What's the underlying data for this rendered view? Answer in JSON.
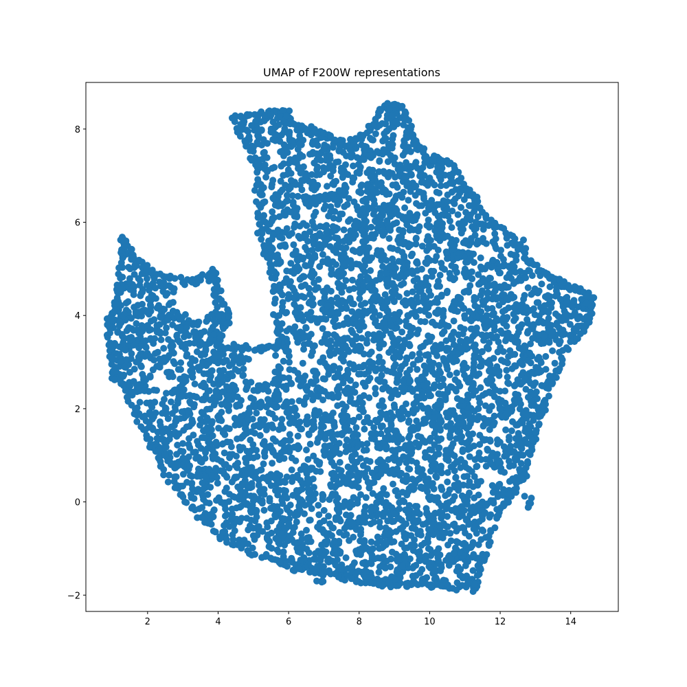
{
  "chart_data": {
    "type": "scatter",
    "title": "UMAP of F200W representations",
    "xlabel": "",
    "ylabel": "",
    "xlim": [
      0.25,
      15.35
    ],
    "ylim": [
      -2.35,
      9.0
    ],
    "x_ticks": [
      2,
      4,
      6,
      8,
      10,
      12,
      14
    ],
    "y_ticks": [
      -2,
      0,
      2,
      4,
      6,
      8
    ],
    "x_tick_labels": [
      "2",
      "4",
      "6",
      "8",
      "10",
      "12",
      "14"
    ],
    "y_tick_labels": [
      "−2",
      "0",
      "2",
      "4",
      "6",
      "8"
    ],
    "grid": false,
    "legend": "none",
    "marker_color": "#1f77b4",
    "outline": [
      [
        1.3,
        5.7
      ],
      [
        1.6,
        5.25
      ],
      [
        2.2,
        4.9
      ],
      [
        3.2,
        4.7
      ],
      [
        3.85,
        4.95
      ],
      [
        4.25,
        4.0
      ],
      [
        4.0,
        3.35
      ],
      [
        5.0,
        3.3
      ],
      [
        5.7,
        3.35
      ],
      [
        5.55,
        4.8
      ],
      [
        5.15,
        5.8
      ],
      [
        5.05,
        7.2
      ],
      [
        4.4,
        8.25
      ],
      [
        5.0,
        8.3
      ],
      [
        5.7,
        8.35
      ],
      [
        6.2,
        8.1
      ],
      [
        7.0,
        7.9
      ],
      [
        7.6,
        7.65
      ],
      [
        8.2,
        7.9
      ],
      [
        8.7,
        8.5
      ],
      [
        9.2,
        8.5
      ],
      [
        9.5,
        7.9
      ],
      [
        9.9,
        7.4
      ],
      [
        10.5,
        7.3
      ],
      [
        11.2,
        6.6
      ],
      [
        11.7,
        6.0
      ],
      [
        12.3,
        5.7
      ],
      [
        12.9,
        5.1
      ],
      [
        13.5,
        4.8
      ],
      [
        14.0,
        4.6
      ],
      [
        14.6,
        4.4
      ],
      [
        14.5,
        3.8
      ],
      [
        13.8,
        3.2
      ],
      [
        13.3,
        2.2
      ],
      [
        13.0,
        1.4
      ],
      [
        12.7,
        0.6
      ],
      [
        12.3,
        0.1
      ],
      [
        11.9,
        -0.3
      ],
      [
        11.5,
        -1.4
      ],
      [
        11.0,
        -1.85
      ],
      [
        10.0,
        -1.8
      ],
      [
        9.0,
        -1.8
      ],
      [
        8.0,
        -1.7
      ],
      [
        7.0,
        -1.5
      ],
      [
        6.0,
        -1.4
      ],
      [
        5.0,
        -1.1
      ],
      [
        4.0,
        -0.7
      ],
      [
        3.2,
        -0.1
      ],
      [
        2.5,
        0.6
      ],
      [
        1.9,
        1.5
      ],
      [
        1.4,
        2.3
      ],
      [
        1.0,
        3.0
      ],
      [
        0.9,
        3.6
      ],
      [
        1.1,
        4.3
      ],
      [
        1.25,
        5.2
      ]
    ],
    "voids": [
      [
        [
          4.0,
          4.7
        ],
        [
          4.6,
          4.4
        ],
        [
          5.2,
          4.3
        ],
        [
          5.4,
          4.9
        ],
        [
          5.2,
          5.6
        ],
        [
          5.05,
          6.6
        ],
        [
          4.9,
          7.2
        ],
        [
          4.7,
          7.9
        ],
        [
          4.4,
          7.6
        ],
        [
          4.2,
          6.8
        ],
        [
          4.0,
          5.8
        ],
        [
          3.95,
          5.2
        ]
      ],
      [
        [
          3.1,
          4.6
        ],
        [
          3.8,
          4.75
        ],
        [
          3.95,
          4.1
        ],
        [
          3.4,
          3.95
        ],
        [
          2.9,
          4.1
        ],
        [
          2.6,
          4.45
        ]
      ],
      [
        [
          4.9,
          3.2
        ],
        [
          5.6,
          3.25
        ],
        [
          5.5,
          2.5
        ],
        [
          4.8,
          2.6
        ]
      ],
      [
        [
          2.2,
          2.8
        ],
        [
          2.6,
          2.75
        ],
        [
          2.5,
          2.3
        ],
        [
          2.15,
          2.5
        ]
      ],
      [
        [
          8.2,
          2.2
        ],
        [
          8.6,
          2.3
        ],
        [
          8.55,
          1.9
        ],
        [
          8.1,
          2.0
        ]
      ],
      [
        [
          6.7,
          0.55
        ],
        [
          7.1,
          0.7
        ],
        [
          7.2,
          0.3
        ],
        [
          6.8,
          0.2
        ]
      ],
      [
        [
          11.4,
          0.7
        ],
        [
          11.8,
          0.8
        ],
        [
          11.75,
          0.4
        ],
        [
          11.3,
          0.5
        ]
      ],
      [
        [
          10.6,
          4.7
        ],
        [
          11.0,
          4.8
        ],
        [
          10.9,
          4.4
        ],
        [
          10.5,
          4.5
        ]
      ],
      [
        [
          7.6,
          6.3
        ],
        [
          7.95,
          6.45
        ],
        [
          7.9,
          6.1
        ],
        [
          7.55,
          6.1
        ]
      ],
      [
        [
          9.4,
          0.2
        ],
        [
          9.8,
          0.25
        ],
        [
          9.75,
          -0.1
        ],
        [
          9.35,
          -0.05
        ]
      ]
    ],
    "scatter_islands": [
      [
        0.95,
        3.9
      ],
      [
        4.7,
        8.05
      ],
      [
        5.95,
        8.3
      ],
      [
        8.9,
        8.4
      ],
      [
        14.5,
        4.3
      ],
      [
        12.8,
        0.0
      ],
      [
        11.3,
        -1.8
      ],
      [
        6.9,
        -1.6
      ],
      [
        1.1,
        2.7
      ],
      [
        3.9,
        4.85
      ],
      [
        13.2,
        2.0
      ],
      [
        12.6,
        5.5
      ],
      [
        9.0,
        8.2
      ],
      [
        10.2,
        7.3
      ],
      [
        4.2,
        3.95
      ]
    ]
  }
}
